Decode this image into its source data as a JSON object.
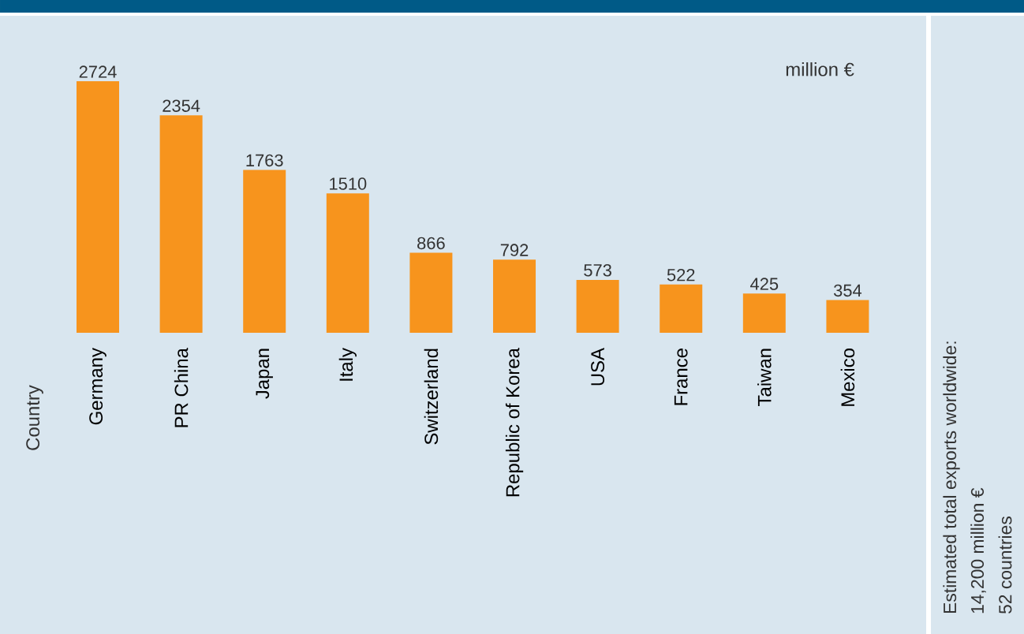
{
  "chart_data": {
    "type": "bar",
    "categories": [
      "Germany",
      "PR China",
      "Japan",
      "Italy",
      "Switzerland",
      "Republic of Korea",
      "USA",
      "France",
      "Taiwan",
      "Mexico"
    ],
    "values": [
      2724,
      2354,
      1763,
      1510,
      866,
      792,
      573,
      522,
      425,
      354
    ],
    "color": "#f7941d",
    "data_labels": true,
    "annotations": [
      "Country",
      "million €",
      "Estimated total exports worldwide:",
      "14,200 million €",
      "52 countries"
    ]
  }
}
